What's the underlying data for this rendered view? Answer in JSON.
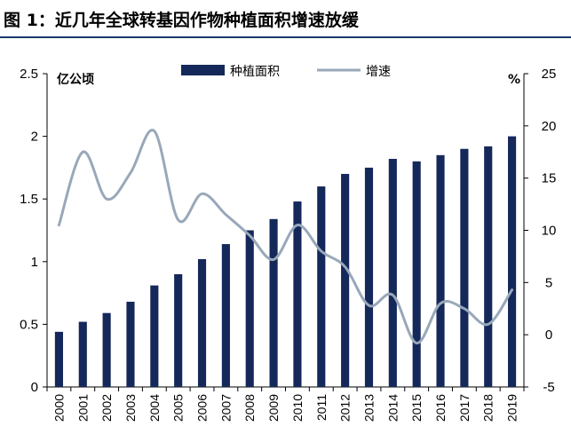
{
  "header": {
    "title": "图 1：近几年全球转基因作物种植面积增速放缓"
  },
  "chart_data": {
    "type": "bar+line",
    "title": "近几年全球转基因作物种植面积增速放缓",
    "categories": [
      "2000",
      "2001",
      "2002",
      "2003",
      "2004",
      "2005",
      "2006",
      "2007",
      "2008",
      "2009",
      "2010",
      "2011",
      "2012",
      "2013",
      "2014",
      "2015",
      "2016",
      "2017",
      "2018",
      "2019"
    ],
    "series": [
      {
        "name": "种植面积",
        "type": "bar",
        "axis": "left",
        "values": [
          0.44,
          0.52,
          0.59,
          0.68,
          0.81,
          0.9,
          1.02,
          1.14,
          1.25,
          1.34,
          1.48,
          1.6,
          1.7,
          1.75,
          1.82,
          1.8,
          1.85,
          1.9,
          1.92,
          2.0
        ]
      },
      {
        "name": "增速",
        "type": "line",
        "axis": "right",
        "values": [
          10.5,
          17.5,
          13.0,
          15.5,
          19.5,
          11.0,
          13.5,
          11.5,
          9.5,
          7.2,
          10.5,
          8.0,
          6.5,
          2.8,
          3.8,
          -0.8,
          3.0,
          2.5,
          1.0,
          4.3
        ]
      }
    ],
    "left_axis": {
      "label": "亿公顷",
      "ylim": [
        0,
        2.5
      ],
      "ticks": [
        "0",
        "0.5",
        "1",
        "1.5",
        "2",
        "2.5"
      ],
      "tick_values": [
        0,
        0.5,
        1,
        1.5,
        2,
        2.5
      ]
    },
    "right_axis": {
      "label": "%",
      "ylim": [
        -5,
        25
      ],
      "ticks": [
        "-5",
        "0",
        "5",
        "10",
        "15",
        "20",
        "25"
      ],
      "tick_values": [
        -5,
        0,
        5,
        10,
        15,
        20,
        25
      ]
    },
    "legend": {
      "position": "top-center",
      "entries": [
        "种植面积",
        "增速"
      ]
    },
    "colors": {
      "bar": "#14285a",
      "line": "#98a8b9",
      "axis": "#000000"
    },
    "grid": false
  }
}
